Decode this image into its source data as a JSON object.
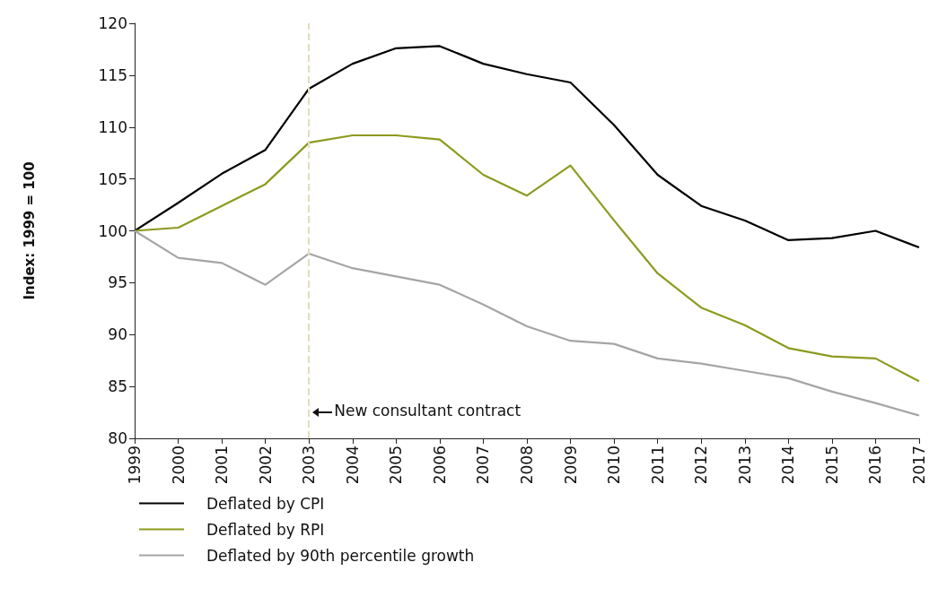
{
  "chart_data": {
    "type": "line",
    "ylabel": "Index: 1999 = 100",
    "x": [
      1999,
      2000,
      2001,
      2002,
      2003,
      2004,
      2005,
      2006,
      2007,
      2008,
      2009,
      2010,
      2011,
      2012,
      2013,
      2014,
      2015,
      2016,
      2017
    ],
    "series": [
      {
        "name": "Deflated by CPI",
        "color": "#000000",
        "values": [
          100,
          102.7,
          105.5,
          107.8,
          113.7,
          116.1,
          117.6,
          117.8,
          116.1,
          115.1,
          114.3,
          110.2,
          105.4,
          102.4,
          101.0,
          99.1,
          99.3,
          100.0,
          98.4
        ]
      },
      {
        "name": "Deflated by RPI",
        "color": "#8c9a1e",
        "values": [
          100,
          100.3,
          102.4,
          104.5,
          108.5,
          109.2,
          109.2,
          108.8,
          105.4,
          103.4,
          106.3,
          101.0,
          95.9,
          92.6,
          90.9,
          88.7,
          87.9,
          87.7,
          85.5
        ]
      },
      {
        "name": "Deflated by 90th percentile growth",
        "color": "#a5a5a5",
        "values": [
          100,
          97.4,
          96.9,
          94.8,
          97.8,
          96.4,
          95.6,
          94.8,
          92.9,
          90.8,
          89.4,
          89.1,
          87.7,
          87.2,
          86.5,
          85.8,
          84.5,
          83.4,
          82.2
        ]
      }
    ],
    "xlim": [
      1999,
      2017
    ],
    "xticks": [
      1999,
      2000,
      2001,
      2002,
      2003,
      2004,
      2005,
      2006,
      2007,
      2008,
      2009,
      2010,
      2011,
      2012,
      2013,
      2014,
      2015,
      2016,
      2017
    ],
    "ylim": [
      80,
      120
    ],
    "yticks": [
      80,
      85,
      90,
      95,
      100,
      105,
      110,
      115,
      120
    ],
    "ref_lines": [
      {
        "axis": "x",
        "value": 2003,
        "color": "#e2dcc0",
        "line_style": "dashed"
      }
    ],
    "annotations": [
      {
        "text": "New consultant contract",
        "x": 2003,
        "y": 82.5
      }
    ],
    "grid": false,
    "legend": "bottom left",
    "marker": "none",
    "line_style": "solid"
  }
}
